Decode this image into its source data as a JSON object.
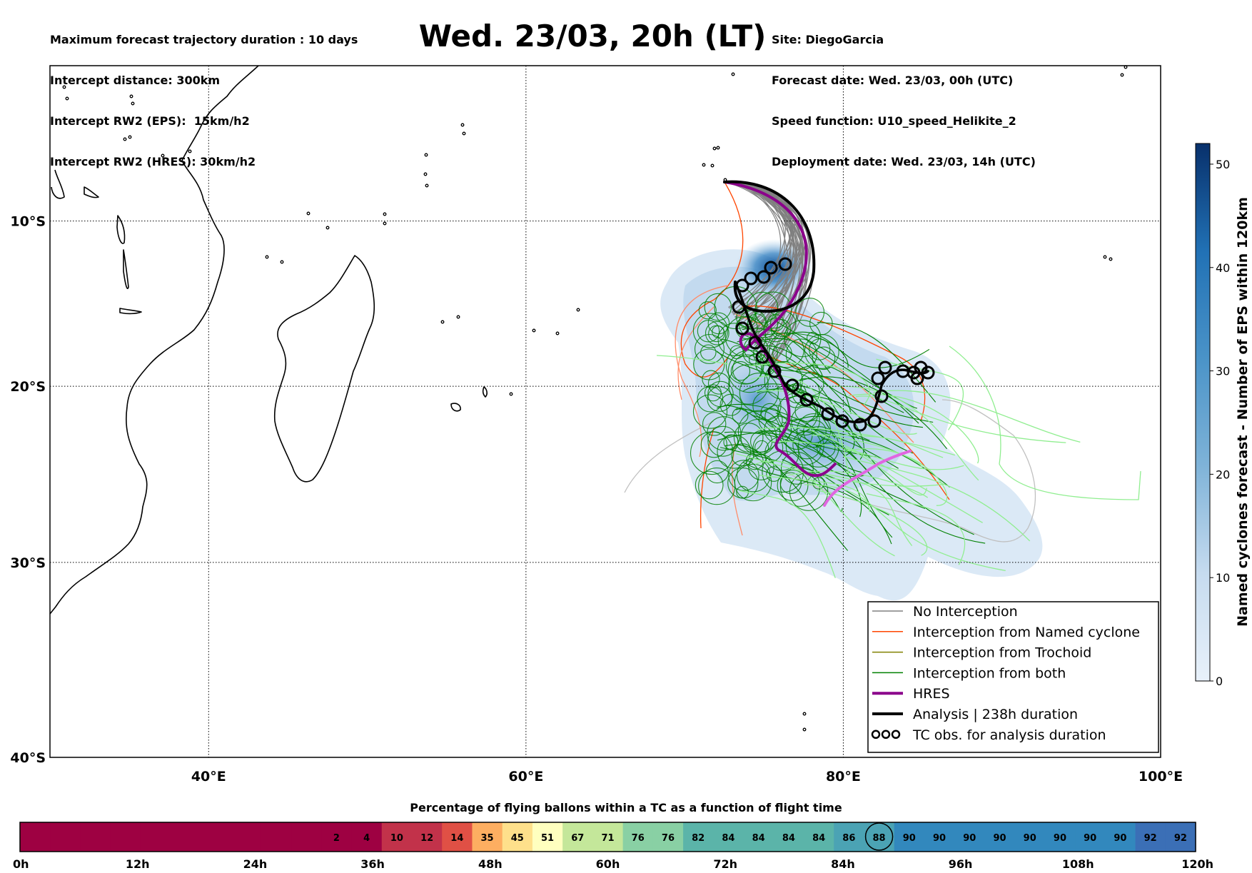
{
  "header_left": [
    "Maximum forecast trajectory duration : 10 days",
    "Intercept distance: 300km",
    "Intercept RW2 (EPS):  15km/h2",
    "Intercept RW2 (HRES): 30km/h2"
  ],
  "title": "Wed. 23/03, 20h (LT)",
  "header_right": [
    "Site: DiegoGarcia",
    "Forecast date: Wed. 23/03, 00h (UTC)",
    "Speed function: U10_speed_Helikite_2",
    "Deployment date: Wed. 23/03, 14h (UTC)"
  ],
  "map": {
    "lat_labels": [
      "10°S",
      "20°S",
      "30°S",
      "40°S"
    ],
    "lon_labels": [
      "40°E",
      "60°E",
      "80°E",
      "100°E"
    ],
    "extent": {
      "lon": [
        30,
        100
      ],
      "lat": [
        -40,
        -0.3
      ]
    }
  },
  "legend": [
    {
      "label": "No Interception",
      "color": "#808080",
      "width": 1.5,
      "symbol": "line"
    },
    {
      "label": "Interception from Named cyclone",
      "color": "#ff4500",
      "width": 1.5,
      "symbol": "line"
    },
    {
      "label": "Interception from Trochoid",
      "color": "#808000",
      "width": 1.5,
      "symbol": "line"
    },
    {
      "label": "Interception from both",
      "color": "#008000",
      "width": 1.5,
      "symbol": "line"
    },
    {
      "label": "HRES",
      "color": "#8b008b",
      "width": 4,
      "symbol": "line"
    },
    {
      "label": "Analysis | 238h duration",
      "color": "#000000",
      "width": 4,
      "symbol": "line"
    },
    {
      "label": "TC obs. for analysis duration",
      "color": "#000000",
      "symbol": "cyclone-symbols"
    }
  ],
  "colorbar_right": {
    "label": "Named cyclones forecast - Number of EPS within 120km",
    "ticks": [
      "0",
      "10",
      "20",
      "30",
      "40",
      "50"
    ],
    "range": [
      0,
      52
    ],
    "colors": [
      "#e8f1fa",
      "#08306b"
    ]
  },
  "bottom_bar": {
    "title": "Percentage of flying ballons within a TC as a function of flight time",
    "time_labels": [
      "0h",
      "12h",
      "24h",
      "36h",
      "48h",
      "60h",
      "72h",
      "84h",
      "96h",
      "108h",
      "120h"
    ],
    "cells": [
      "",
      "",
      "",
      "",
      "",
      "",
      "",
      "",
      "",
      "",
      "2",
      "4",
      "10",
      "12",
      "14",
      "35",
      "45",
      "51",
      "67",
      "71",
      "76",
      "76",
      "82",
      "84",
      "84",
      "84",
      "84",
      "86",
      "88",
      "90",
      "90",
      "90",
      "90",
      "90",
      "90",
      "90",
      "90",
      "92",
      "92"
    ],
    "highlight_value": "88"
  }
}
